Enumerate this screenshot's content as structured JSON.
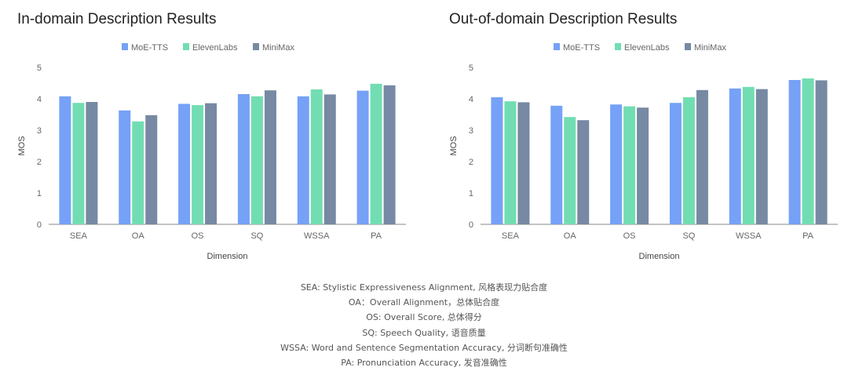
{
  "colors": {
    "MoE-TTS": "#75a1f7",
    "ElevenLabs": "#72ddb2",
    "MiniMax": "#7789a3"
  },
  "chart_data": [
    {
      "type": "bar",
      "title": "In-domain Description Results",
      "xlabel": "Dimension",
      "ylabel": "MOS",
      "ylim": [
        0,
        5
      ],
      "yticks": [
        "0",
        "1",
        "2",
        "3",
        "4",
        "5"
      ],
      "legend": "top-center",
      "categories": [
        "SEA",
        "OA",
        "OS",
        "SQ",
        "WSSA",
        "PA"
      ],
      "series": [
        {
          "name": "MoE-TTS",
          "values": [
            4.08,
            3.63,
            3.84,
            4.15,
            4.08,
            4.26
          ]
        },
        {
          "name": "ElevenLabs",
          "values": [
            3.87,
            3.28,
            3.8,
            4.08,
            4.3,
            4.48
          ]
        },
        {
          "name": "MiniMax",
          "values": [
            3.9,
            3.48,
            3.86,
            4.27,
            4.14,
            4.43
          ]
        }
      ]
    },
    {
      "type": "bar",
      "title": "Out-of-domain Description Results",
      "xlabel": "Dimension",
      "ylabel": "MOS",
      "ylim": [
        0,
        5
      ],
      "yticks": [
        "0",
        "1",
        "2",
        "3",
        "4",
        "5"
      ],
      "legend": "top-center",
      "categories": [
        "SEA",
        "OA",
        "OS",
        "SQ",
        "WSSA",
        "PA"
      ],
      "series": [
        {
          "name": "MoE-TTS",
          "values": [
            4.05,
            3.78,
            3.82,
            3.87,
            4.33,
            4.6
          ]
        },
        {
          "name": "ElevenLabs",
          "values": [
            3.92,
            3.42,
            3.76,
            4.05,
            4.38,
            4.65
          ]
        },
        {
          "name": "MiniMax",
          "values": [
            3.89,
            3.32,
            3.72,
            4.28,
            4.31,
            4.59
          ]
        }
      ]
    }
  ],
  "notes": [
    "SEA: Stylistic Expressiveness Alignment, 风格表现力贴合度",
    "OA：Overall Alignment，总体贴合度",
    "OS: Overall Score, 总体得分",
    "SQ: Speech Quality, 语音质量",
    "WSSA: Word and Sentence Segmentation Accuracy, 分词断句准确性",
    "PA: Pronunciation Accuracy, 发音准确性"
  ]
}
